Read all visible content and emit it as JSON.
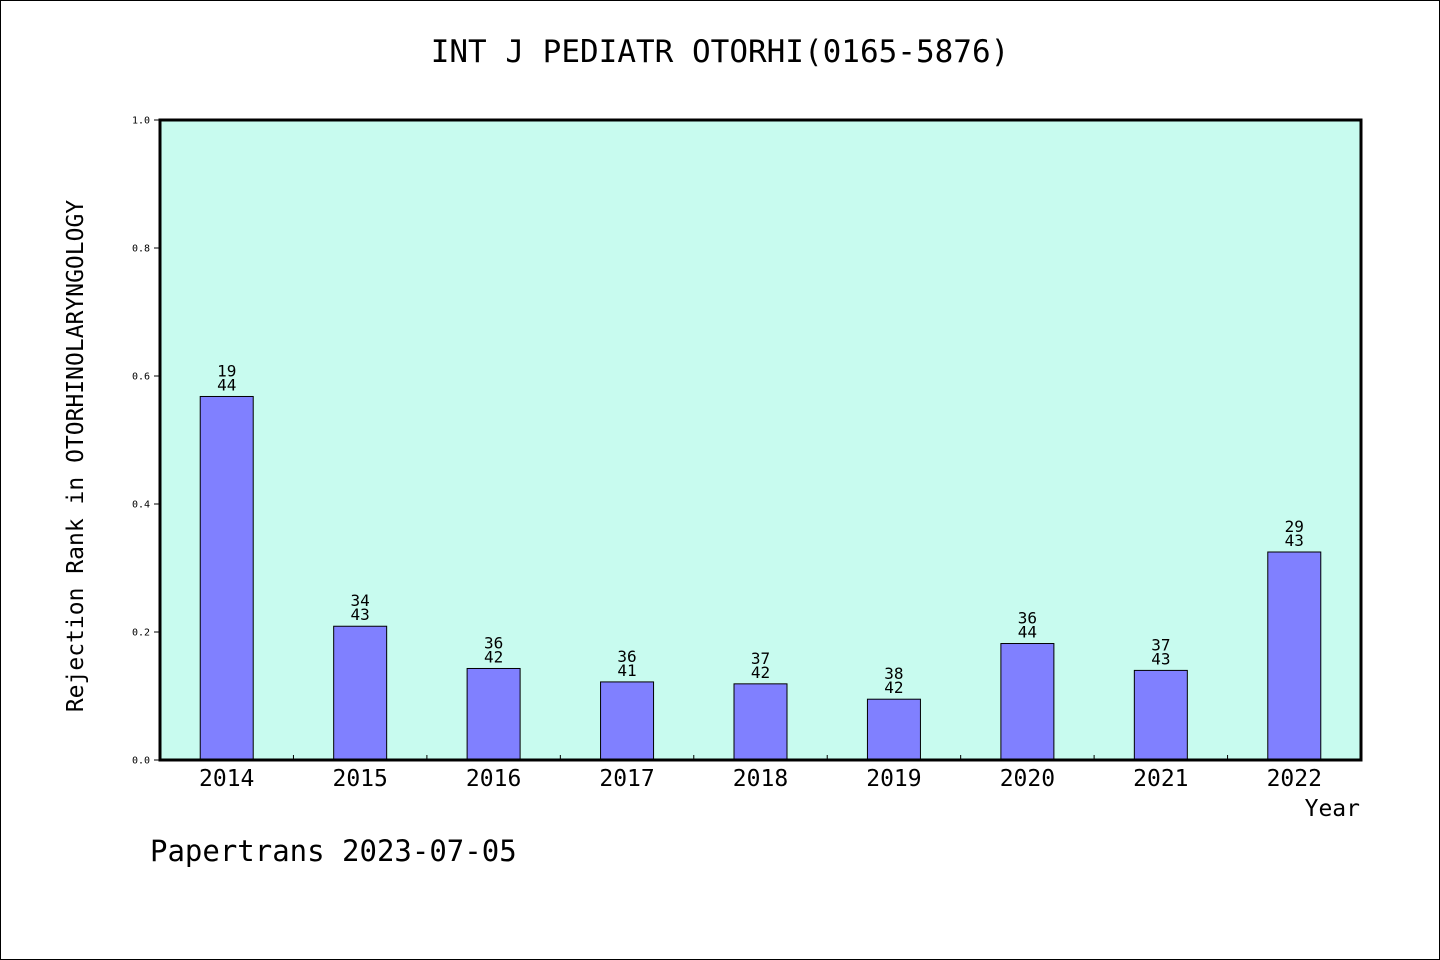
{
  "title": "INT J PEDIATR OTORHI(0165-5876)",
  "footer": "Papertrans 2023-07-05",
  "colors": {
    "plot_bg": "#c8fbef",
    "bar": "#8080ff",
    "axis": "#000000"
  },
  "chart_data": {
    "type": "bar",
    "title": "INT J PEDIATR OTORHI(0165-5876)",
    "xlabel": "Year",
    "ylabel": "Rejection Rank in OTORHINOLARYNGOLOGY",
    "ylim": [
      0,
      1.0
    ],
    "yticks": [
      "0.0",
      "0.2",
      "0.4",
      "0.6",
      "0.8",
      "1.0"
    ],
    "categories": [
      "2014",
      "2015",
      "2016",
      "2017",
      "2018",
      "2019",
      "2020",
      "2021",
      "2022"
    ],
    "values": [
      0.568,
      0.209,
      0.143,
      0.122,
      0.119,
      0.095,
      0.182,
      0.14,
      0.325
    ],
    "ranks": [
      "19",
      "34",
      "36",
      "36",
      "37",
      "38",
      "36",
      "37",
      "29"
    ],
    "totals": [
      "44",
      "43",
      "42",
      "41",
      "42",
      "42",
      "44",
      "43",
      "43"
    ],
    "grid": false,
    "legend": "none"
  }
}
